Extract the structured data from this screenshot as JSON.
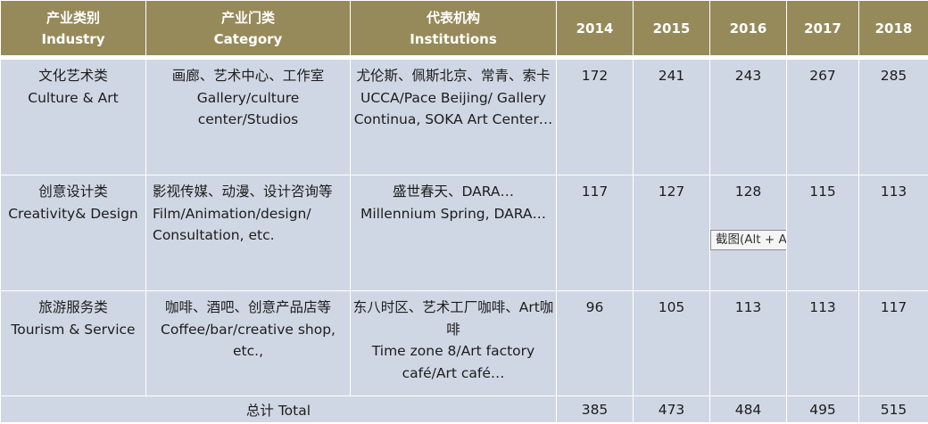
{
  "headers": {
    "industry_zh": "产业类别",
    "industry_en": "Industry",
    "category_zh": "产业门类",
    "category_en": "Category",
    "institutions_zh": "代表机构",
    "institutions_en": "Institutions",
    "years": [
      "2014",
      "2015",
      "2016",
      "2017",
      "2018"
    ]
  },
  "rows": [
    {
      "industry_zh": "文化艺术类",
      "industry_en": "Culture & Art",
      "category_zh": "画廊、艺术中心、工作室",
      "category_en": "Gallery/culture center/Studios",
      "institutions_zh": "尤伦斯、佩斯北京、常青、索卡",
      "institutions_en": "UCCA/Pace Beijing/ Gallery Continua, SOKA Art Center…",
      "values": [
        "172",
        "241",
        "243",
        "267",
        "285"
      ]
    },
    {
      "industry_zh": "创意设计类",
      "industry_en": "Creativity& Design",
      "category_zh": "影视传媒、动漫、设计咨询等",
      "category_en": "Film/Animation/design/ Consultation, etc.",
      "institutions_zh": "盛世春天、DARA…",
      "institutions_en": "Millennium Spring, DARA…",
      "values": [
        "117",
        "127",
        "128",
        "115",
        "113"
      ]
    },
    {
      "industry_zh": "旅游服务类",
      "industry_en": "Tourism & Service",
      "category_zh": "咖啡、酒吧、创意产品店等",
      "category_en": "Coffee/bar/creative shop, etc.,",
      "institutions_zh": "东八时区、艺术工厂咖啡、Art咖啡",
      "institutions_en": "Time zone 8/Art factory café/Art café…",
      "values": [
        "96",
        "105",
        "113",
        "113",
        "117"
      ]
    }
  ],
  "total": {
    "label": "总计 Total",
    "values": [
      "385",
      "473",
      "484",
      "495",
      "515"
    ]
  },
  "tooltip": "截图(Alt + A)"
}
